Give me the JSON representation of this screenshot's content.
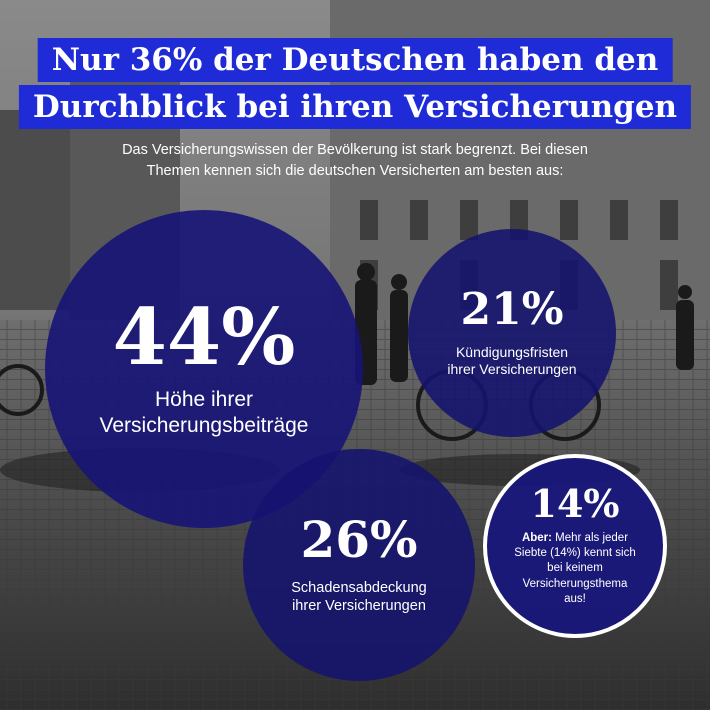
{
  "title": {
    "line1": "Nur 36% der Deutschen haben den",
    "line2": "Durchblick bei ihren Versicherungen"
  },
  "subtitle": {
    "line1": "Das Versicherungswissen der Bevölkerung ist stark begrenzt. Bei diesen",
    "line2": "Themen kennen sich die deutschen Versicherten am besten aus:"
  },
  "stats": {
    "premiums": {
      "percent": "44%",
      "line1": "Höhe ihrer",
      "line2": "Versicherungsbeiträge"
    },
    "cancellation": {
      "percent": "21%",
      "line1": "Kündigungsfristen",
      "line2": "ihrer Versicherungen"
    },
    "coverage": {
      "percent": "26%",
      "line1": "Schadensabdeckung",
      "line2": "ihrer Versicherungen"
    },
    "none": {
      "percent": "14%",
      "lead": "Aber:",
      "line1": " Mehr als jeder",
      "line2": "Siebte (14%) kennt sich",
      "line3": "bei keinem",
      "line4": "Versicherungsthema",
      "line5": "aus!"
    }
  },
  "colors": {
    "title_background": "#1f2bd6",
    "circle_fill": "#17147a",
    "text": "#ffffff"
  }
}
